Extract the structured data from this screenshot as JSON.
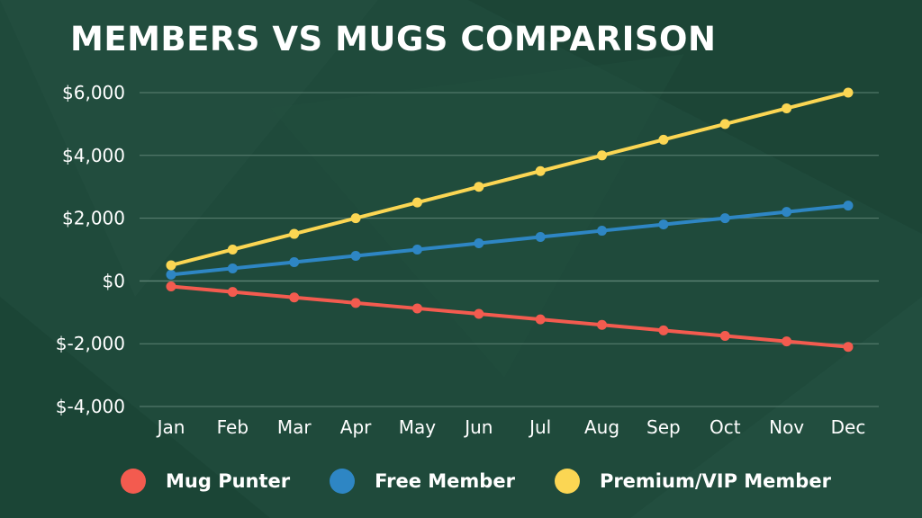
{
  "colors": {
    "background": "#1f4a3b",
    "grid": "#5d8274",
    "mug_punter": "#f35b4f",
    "free_member": "#2e86c4",
    "premium_vip": "#fbd653"
  },
  "chart_data": {
    "type": "line",
    "title": "MEMBERS VS MUGS COMPARISON",
    "xlabel": "",
    "ylabel": "",
    "categories": [
      "Jan",
      "Feb",
      "Mar",
      "Apr",
      "May",
      "Jun",
      "Jul",
      "Aug",
      "Sep",
      "Oct",
      "Nov",
      "Dec"
    ],
    "ylim": [
      -4000,
      6000
    ],
    "yticks": [
      6000,
      4000,
      2000,
      0,
      -2000,
      -4000
    ],
    "ytick_labels": [
      "$6,000",
      "$4,000",
      "$2,000",
      "$0",
      "$-2,000",
      "$-4,000"
    ],
    "grid": true,
    "legend_position": "bottom",
    "series": [
      {
        "name": "Mug Punter",
        "color_key": "mug_punter",
        "values": [
          -175,
          -350,
          -525,
          -700,
          -875,
          -1050,
          -1225,
          -1400,
          -1575,
          -1750,
          -1925,
          -2100
        ]
      },
      {
        "name": "Free Member",
        "color_key": "free_member",
        "values": [
          200,
          400,
          600,
          800,
          1000,
          1200,
          1400,
          1600,
          1800,
          2000,
          2200,
          2400
        ]
      },
      {
        "name": "Premium/VIP Member",
        "color_key": "premium_vip",
        "values": [
          500,
          1000,
          1500,
          2000,
          2500,
          3000,
          3500,
          4000,
          4500,
          5000,
          5500,
          6000
        ]
      }
    ]
  }
}
